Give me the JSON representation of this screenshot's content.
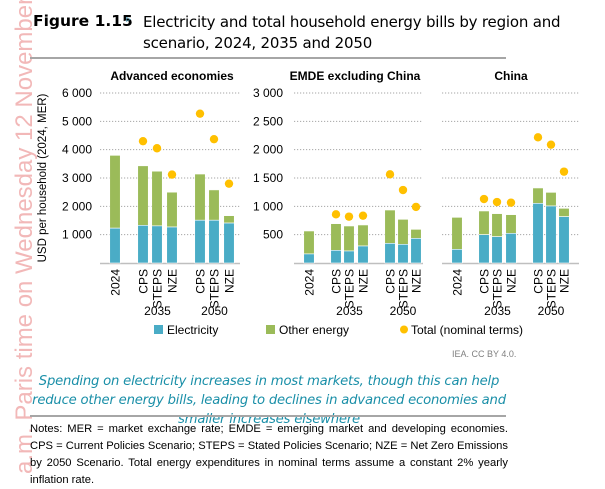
{
  "watermark": "a.m. Paris time on Wednesday 12 November.",
  "figure": {
    "label": "Figure 1.15",
    "arrow_icon": "▹",
    "title": "Electricity and total household energy bills by region and scenario, 2024, 2035 and 2050"
  },
  "caption": "Spending on electricity increases in most markets, though this can help reduce other energy bills, leading to declines in advanced economies and smaller increases elsewhere",
  "notes": "Notes: MER = market exchange rate; EMDE = emerging market and developing economies. CPS = Current Policies Scenario; STEPS = Stated Policies Scenario; NZE = Net Zero Emissions by 2050 Scenario. Total energy expenditures in nominal terms assume a constant 2% yearly inflation rate.",
  "credit": "IEA. CC BY 4.0.",
  "colors": {
    "electricity": "#4aacc6",
    "other_energy": "#9bbb59",
    "total": "#ffc000",
    "grid": "#a6a6a6",
    "axis": "#bfbfbf"
  },
  "chart_data": {
    "type": "bar",
    "stacked": true,
    "ylabel": "USD per household (2024, MER)",
    "legend": {
      "position": "bottom",
      "entries": [
        {
          "name": "Electricity",
          "marker": "square",
          "color": "#4aacc6"
        },
        {
          "name": "Other energy",
          "marker": "square",
          "color": "#9bbb59"
        },
        {
          "name": "Total (nominal terms)",
          "marker": "circle",
          "color": "#ffc000"
        }
      ]
    },
    "categories": [
      "2024",
      "CPS",
      "STEPS",
      "NZE",
      "CPS",
      "STEPS",
      "NZE"
    ],
    "category_groups": [
      {
        "label": "",
        "members": [
          "2024"
        ]
      },
      {
        "label": "2035",
        "members": [
          "CPS",
          "STEPS",
          "NZE"
        ]
      },
      {
        "label": "2050",
        "members": [
          "CPS",
          "STEPS",
          "NZE"
        ]
      }
    ],
    "panels": [
      {
        "title": "Advanced economies",
        "ylim": [
          0,
          6000
        ],
        "yticks": [
          1000,
          2000,
          3000,
          4000,
          5000,
          6000
        ],
        "ytick_labels": [
          "1 000",
          "2 000",
          "3 000",
          "4 000",
          "5 000",
          "6 000"
        ],
        "grid": true,
        "series": [
          {
            "name": "Electricity",
            "values": [
              1230,
              1330,
              1310,
              1270,
              1510,
              1510,
              1410
            ]
          },
          {
            "name": "Other energy",
            "values": [
              2570,
              2100,
              1930,
              1230,
              1630,
              1070,
              260
            ]
          },
          {
            "name": "Total (nominal terms)",
            "values": [
              null,
              4300,
              4050,
              3120,
              5270,
              4370,
              2800
            ]
          }
        ]
      },
      {
        "title": "EMDE excluding China",
        "ylim": [
          0,
          3000
        ],
        "yticks": [
          500,
          1000,
          1500,
          2000,
          2500,
          3000
        ],
        "ytick_labels": [
          "500",
          "1 000",
          "1 500",
          "2 000",
          "2 500",
          "3 000"
        ],
        "grid": true,
        "series": [
          {
            "name": "Electricity",
            "values": [
              160,
              224,
              212,
              300,
              347,
              330,
              435
            ]
          },
          {
            "name": "Other energy",
            "values": [
              405,
              470,
              441,
              371,
              588,
              441,
              159
            ]
          },
          {
            "name": "Total (nominal terms)",
            "values": [
              null,
              859,
              818,
              835,
              1565,
              1288,
              990
            ]
          }
        ]
      },
      {
        "title": "China",
        "ylim": [
          0,
          3000
        ],
        "yticks": [
          500,
          1000,
          1500,
          2000,
          2500,
          3000
        ],
        "ytick_labels": [],
        "grid": true,
        "series": [
          {
            "name": "Electricity",
            "values": [
              241,
              500,
              465,
              524,
              1053,
              1006,
              818
            ]
          },
          {
            "name": "Other energy",
            "values": [
              565,
              418,
              406,
              329,
              271,
              241,
              147
            ]
          },
          {
            "name": "Total (nominal terms)",
            "values": [
              null,
              1129,
              1076,
              1065,
              2218,
              2088,
              1612
            ]
          }
        ]
      }
    ]
  }
}
